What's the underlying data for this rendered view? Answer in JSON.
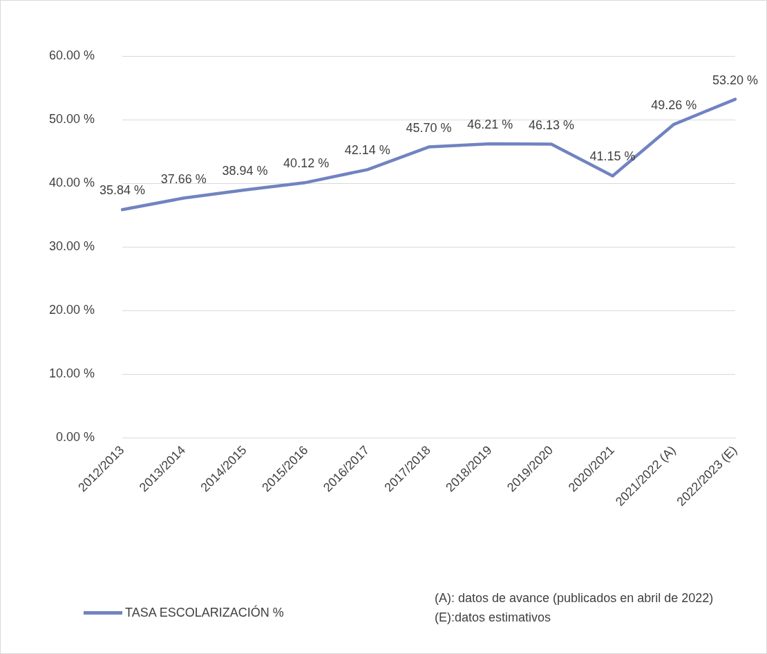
{
  "chart_data": {
    "type": "line",
    "categories": [
      "2012/2013",
      "2013/2014",
      "2014/2015",
      "2015/2016",
      "2016/2017",
      "2017/2018",
      "2018/2019",
      "2019/2020",
      "2020/2021",
      "2021/2022 (A)",
      "2022/2023 (E)"
    ],
    "series": [
      {
        "name": "TASA ESCOLARIZACIÓN %",
        "color": "#7183c0",
        "values": [
          35.84,
          37.66,
          38.94,
          40.12,
          42.14,
          45.7,
          46.21,
          46.13,
          41.15,
          49.26,
          53.2
        ],
        "value_labels": [
          "35.84 %",
          "37.66 %",
          "38.94 %",
          "40.12 %",
          "42.14 %",
          "45.70 %",
          "46.21 %",
          "46.13 %",
          "41.15 %",
          "49.26 %",
          "53.20 %"
        ]
      }
    ],
    "ylim": [
      0,
      60
    ],
    "yticks": [
      {
        "value": 0,
        "label": "0.00 %"
      },
      {
        "value": 10,
        "label": "10.00 %"
      },
      {
        "value": 20,
        "label": "20.00 %"
      },
      {
        "value": 30,
        "label": "30.00 %"
      },
      {
        "value": 40,
        "label": "40.00 %"
      },
      {
        "value": 50,
        "label": "50.00 %"
      },
      {
        "value": 60,
        "label": "60.00 %"
      }
    ],
    "grid": "y",
    "legend": "bottom left",
    "marker": "none",
    "line_style": "solid",
    "annotations": [
      "(A): datos de avance (publicados en abril de 2022)",
      "(E):datos estimativos"
    ]
  }
}
